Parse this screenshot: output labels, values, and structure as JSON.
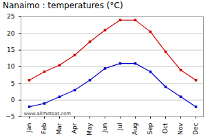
{
  "chart_data": {
    "type": "line",
    "title": "Nanaimo : temperatures (°C)",
    "categories": [
      "Jan",
      "Feb",
      "Mar",
      "Apr",
      "May",
      "Jun",
      "Jul",
      "Aug",
      "Sep",
      "Oct",
      "Nov",
      "Dec"
    ],
    "series": [
      {
        "color": "#cc0000",
        "marker": "square",
        "line_style": "solid",
        "values": [
          6,
          8.5,
          10.5,
          13.5,
          17.5,
          21,
          24,
          24,
          20.5,
          14.5,
          9,
          6
        ]
      },
      {
        "color": "#0000cc",
        "marker": "square",
        "line_style": "solid",
        "values": [
          -2,
          -1,
          1,
          3,
          6,
          9.5,
          11,
          11,
          8.5,
          4,
          1,
          -2
        ]
      }
    ],
    "ylim": [
      -5,
      25
    ],
    "yticks": [
      -5,
      0,
      5,
      10,
      15,
      20,
      25
    ],
    "grid": true,
    "annotation": "www.allmetsat.com"
  }
}
